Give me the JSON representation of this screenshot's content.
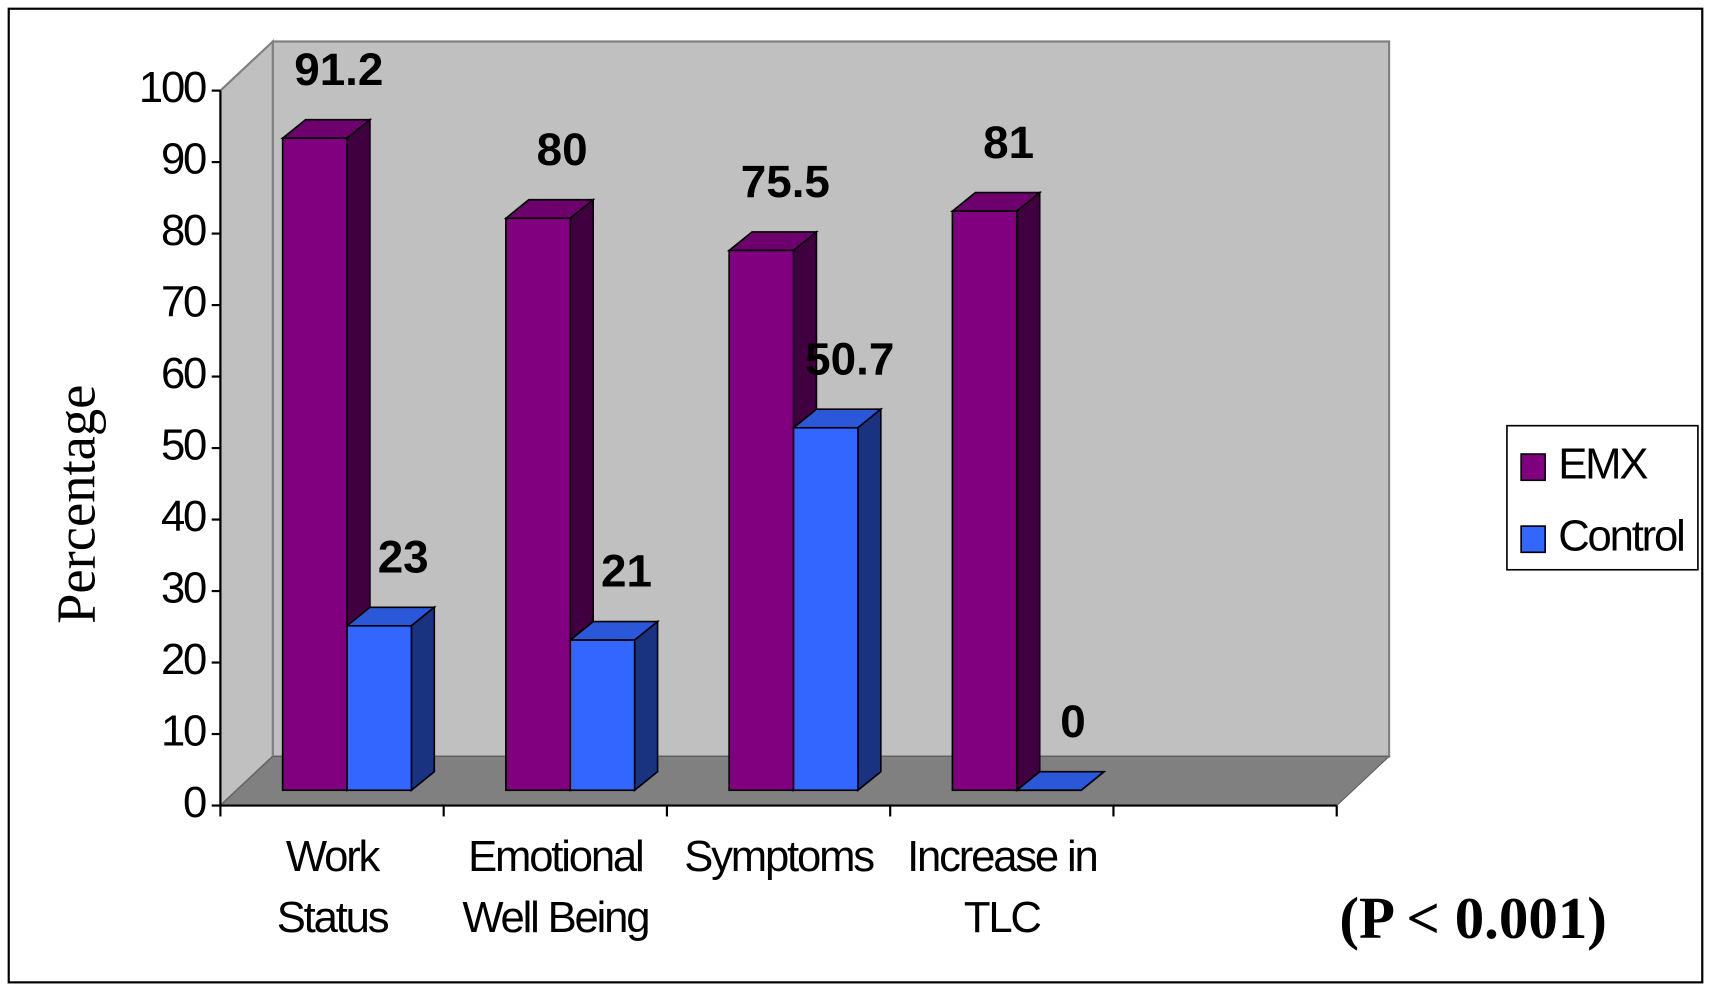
{
  "chart_data": {
    "type": "bar3d",
    "categories": [
      "Work\nStatus",
      "Emotional\nWell Being",
      "Symptoms",
      "Increase in\nTLC",
      null
    ],
    "series": [
      {
        "name": "EMX",
        "color": "#800080",
        "values": [
          91.2,
          80,
          75.5,
          81,
          null
        ]
      },
      {
        "name": "Control",
        "color": "#3366ff",
        "values": [
          23,
          21,
          50.7,
          0,
          null
        ]
      }
    ],
    "y_label": "Percentage",
    "annotation": "(P < 0.001)",
    "ylim": [
      0,
      100
    ],
    "yticks": [
      0,
      10,
      20,
      30,
      40,
      50,
      60,
      70,
      80,
      90,
      100
    ],
    "legend": "right"
  }
}
